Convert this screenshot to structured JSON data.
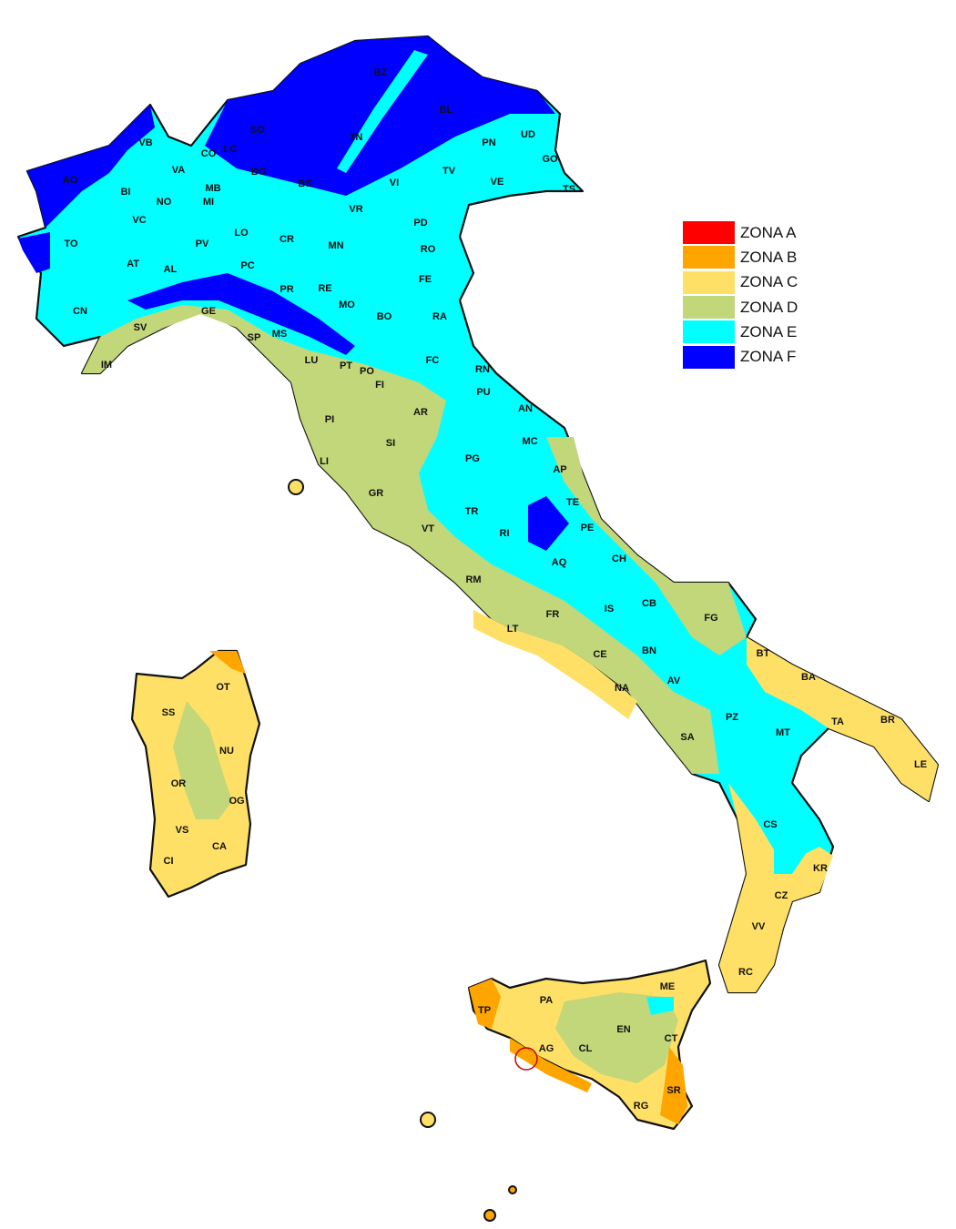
{
  "legend": {
    "items": [
      {
        "label": "ZONA A",
        "color": "#ff0000"
      },
      {
        "label": "ZONA B",
        "color": "#ffa500"
      },
      {
        "label": "ZONA C",
        "color": "#ffe066"
      },
      {
        "label": "ZONA D",
        "color": "#c2d67a"
      },
      {
        "label": "ZONA E",
        "color": "#00ffff"
      },
      {
        "label": "ZONA F",
        "color": "#0000ff"
      }
    ]
  },
  "provinces": [
    "BZ",
    "BL",
    "SO",
    "TN",
    "UD",
    "PN",
    "GO",
    "TS",
    "VB",
    "CO",
    "LC",
    "BG",
    "BS",
    "AO",
    "TV",
    "VE",
    "VI",
    "VA",
    "BI",
    "NO",
    "MB",
    "MI",
    "VR",
    "PD",
    "VC",
    "TO",
    "LO",
    "CR",
    "MN",
    "RO",
    "PV",
    "AT",
    "AL",
    "PC",
    "FE",
    "PR",
    "RE",
    "CN",
    "MO",
    "BO",
    "RA",
    "GE",
    "SV",
    "SP",
    "MS",
    "IM",
    "FC",
    "LU",
    "PT",
    "PO",
    "RN",
    "FI",
    "PU",
    "AR",
    "AN",
    "PI",
    "SI",
    "MC",
    "LI",
    "PG",
    "AP",
    "GR",
    "TE",
    "TR",
    "RI",
    "PE",
    "VT",
    "AQ",
    "CH",
    "RM",
    "IS",
    "CB",
    "FG",
    "FR",
    "LT",
    "CE",
    "BN",
    "BT",
    "NA",
    "AV",
    "BA",
    "PZ",
    "SA",
    "MT",
    "TA",
    "BR",
    "LE",
    "CS",
    "KR",
    "CZ",
    "VV",
    "RC",
    "OT",
    "SS",
    "NU",
    "OR",
    "OG",
    "VS",
    "CA",
    "CI",
    "ME",
    "PA",
    "TP",
    "EN",
    "CT",
    "AG",
    "CL",
    "SR",
    "RG"
  ]
}
